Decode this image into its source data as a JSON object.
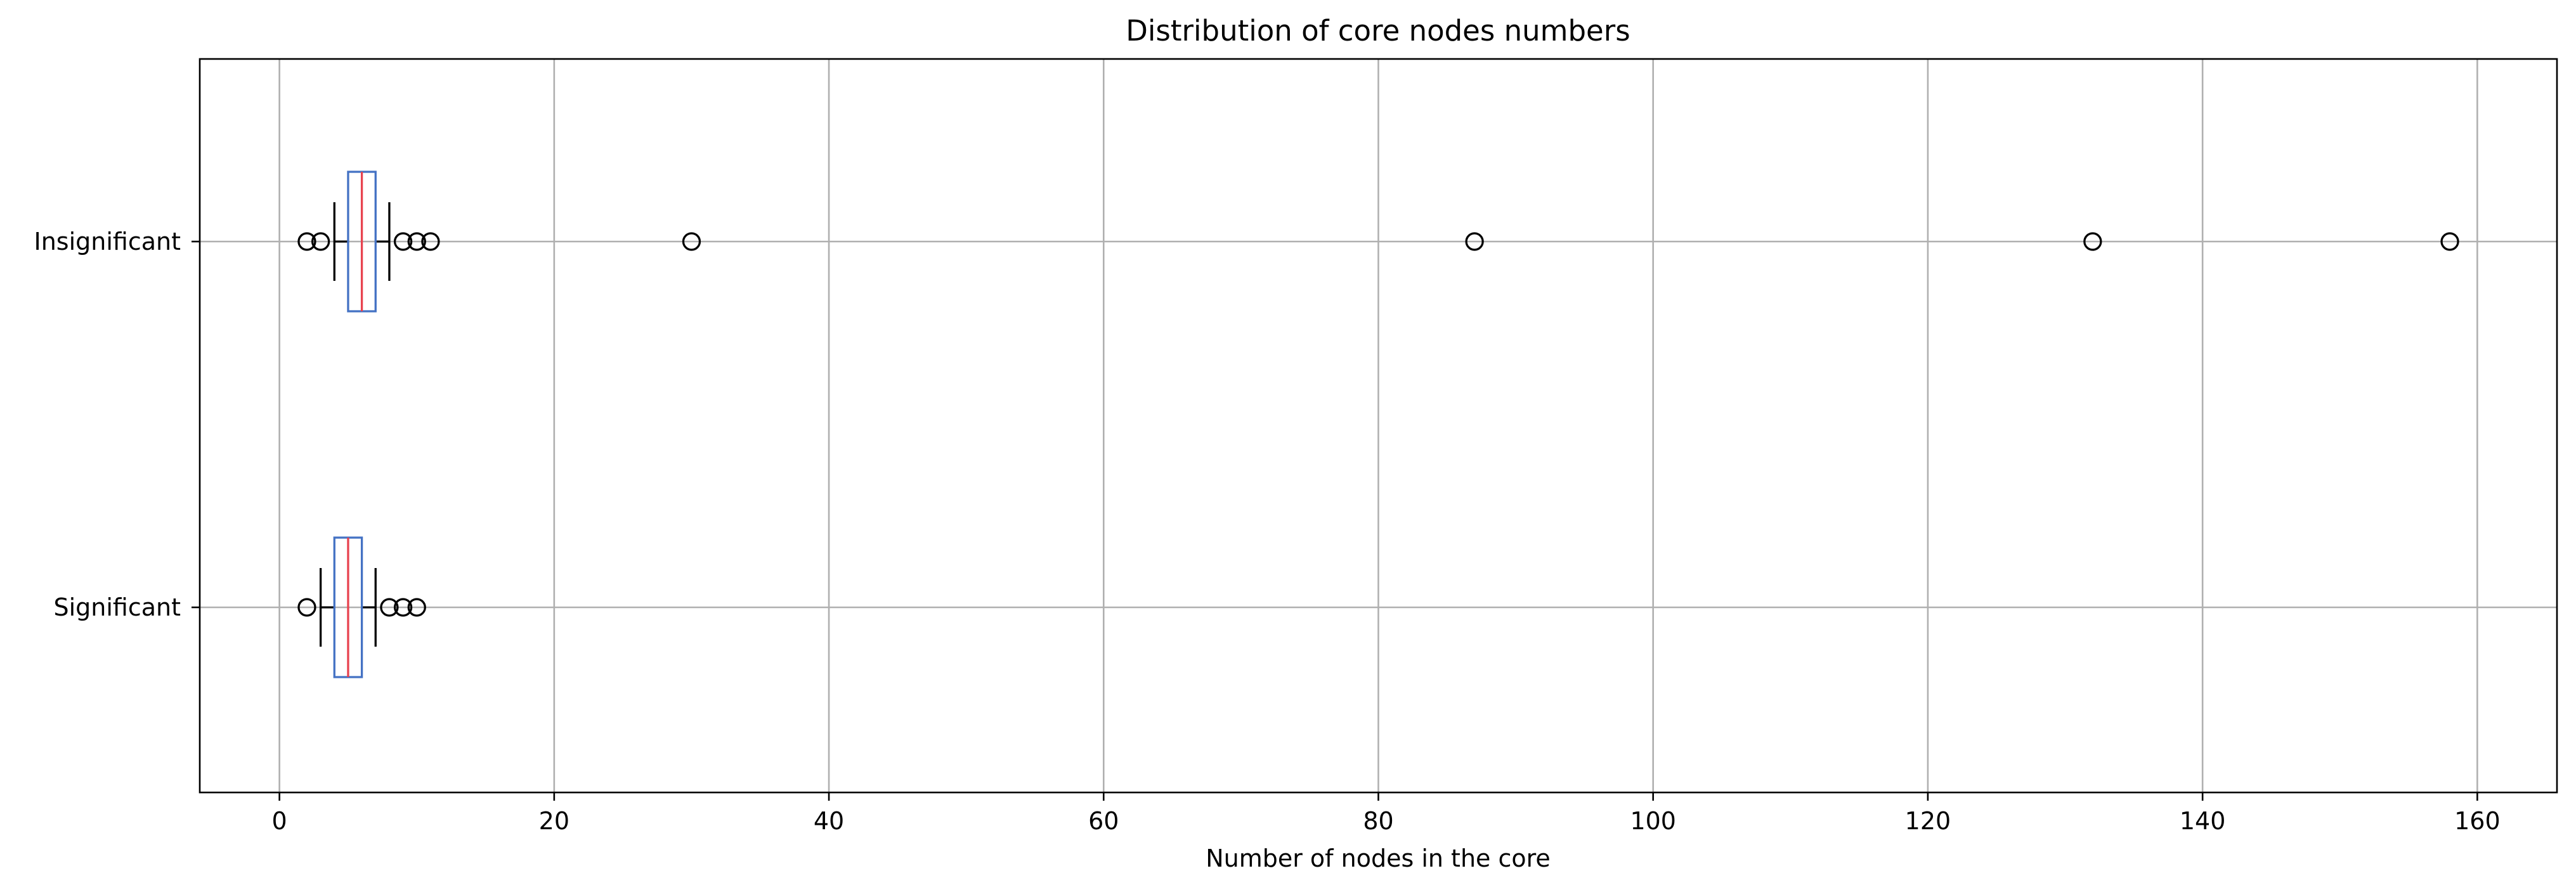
{
  "chart_data": {
    "type": "box",
    "orientation": "horizontal",
    "title": "Distribution of core nodes numbers",
    "xlabel": "Number of nodes in the core",
    "ylabel": "",
    "xlim": [
      -5.8,
      165.8
    ],
    "xticks": [
      0,
      20,
      40,
      60,
      80,
      100,
      120,
      140,
      160
    ],
    "grid": true,
    "colors": {
      "box": "#4472c4",
      "median": "#e8434f",
      "whisker": "#000000",
      "flier": "#000000",
      "grid": "#b0b0b0"
    },
    "series": [
      {
        "name": "Insignificant",
        "q1": 5,
        "median": 6,
        "q3": 7,
        "whisker_low": 4,
        "whisker_high": 8,
        "fliers": [
          2,
          3,
          9,
          10,
          11,
          30,
          87,
          132,
          158
        ]
      },
      {
        "name": "Significant",
        "q1": 4,
        "median": 5,
        "q3": 6,
        "whisker_low": 3,
        "whisker_high": 7,
        "fliers": [
          2,
          8,
          9,
          10
        ]
      }
    ]
  }
}
